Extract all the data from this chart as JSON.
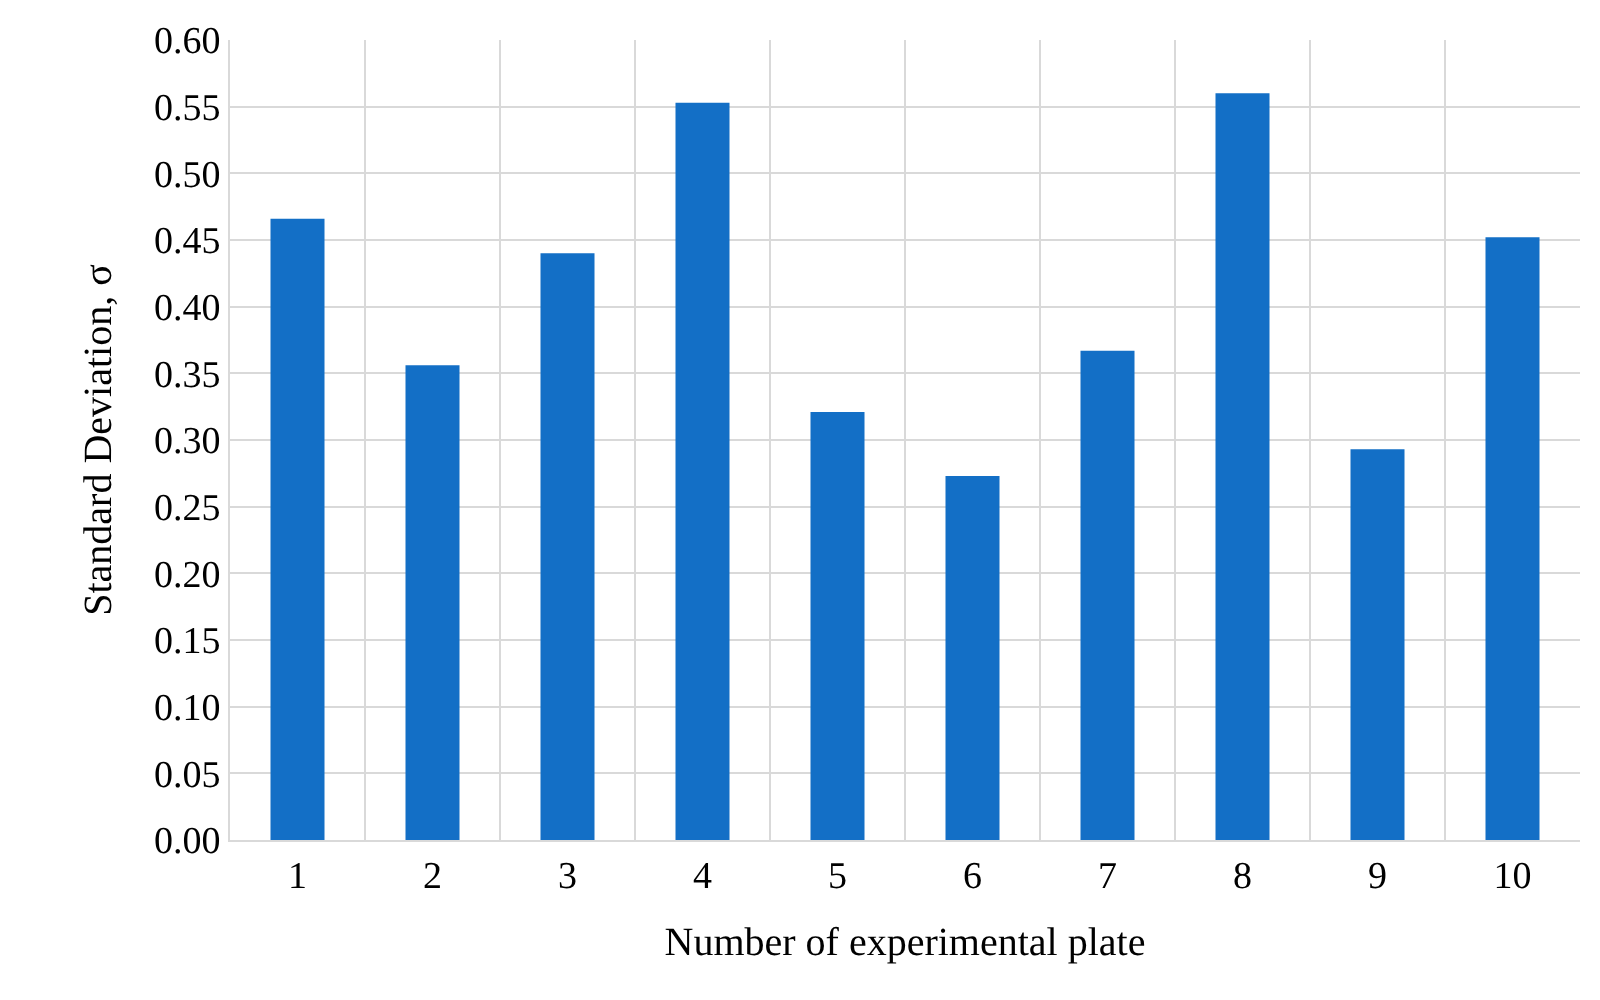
{
  "chart_data": {
    "type": "bar",
    "xlabel": "Number of experimental plate",
    "ylabel": "Standard Deviation, σ",
    "categories": [
      "1",
      "2",
      "3",
      "4",
      "5",
      "6",
      "7",
      "8",
      "9",
      "10"
    ],
    "values": [
      0.466,
      0.356,
      0.44,
      0.553,
      0.321,
      0.273,
      0.367,
      0.56,
      0.293,
      0.452
    ],
    "color": "#136fc6",
    "ylim": [
      0,
      0.6
    ],
    "yticks": [
      {
        "value": 0,
        "label": "0.00"
      },
      {
        "value": 0.05,
        "label": "0.05"
      },
      {
        "value": 0.1,
        "label": "0.10"
      },
      {
        "value": 0.15,
        "label": "0.15"
      },
      {
        "value": 0.2,
        "label": "0.20"
      },
      {
        "value": 0.25,
        "label": "0.25"
      },
      {
        "value": 0.3,
        "label": "0.30"
      },
      {
        "value": 0.35,
        "label": "0.35"
      },
      {
        "value": 0.4,
        "label": "0.40"
      },
      {
        "value": 0.45,
        "label": "0.45"
      },
      {
        "value": 0.5,
        "label": "0.50"
      },
      {
        "value": 0.55,
        "label": "0.55"
      },
      {
        "value": 0.6,
        "label": "0.60"
      }
    ],
    "grid": true,
    "legend": false
  }
}
